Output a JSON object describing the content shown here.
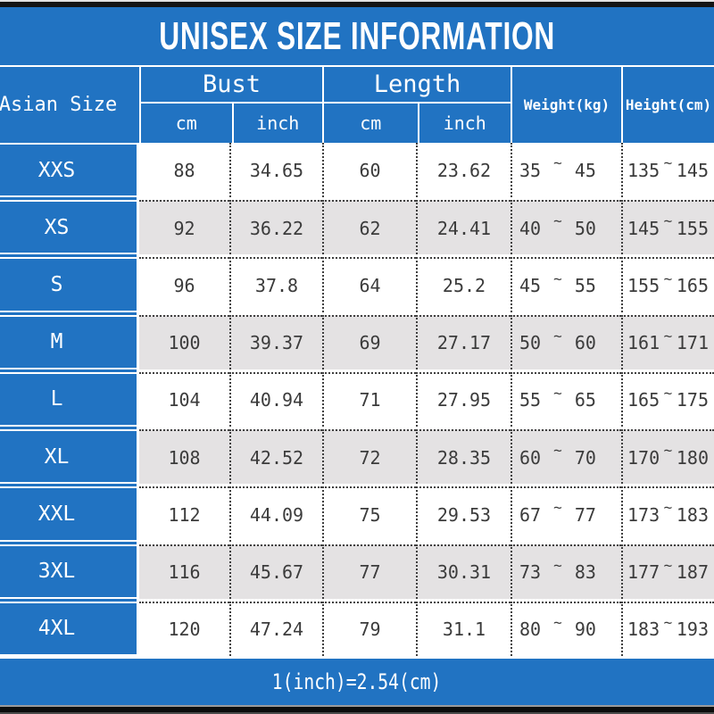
{
  "title": "UNISEX SIZE INFORMATION",
  "tilde": "~",
  "footer_note": "1(inch)=2.54(cm)",
  "colors": {
    "brand_blue": "#2173c2",
    "alt_row_gray": "#e4e2e3",
    "data_text": "#3b3b3b",
    "header_text": "#ffffff",
    "top_bottom_bar": "#141414"
  },
  "header": {
    "size_col": "Asian Size",
    "bust": {
      "label": "Bust",
      "sub_cm": "cm",
      "sub_inch": "inch"
    },
    "length": {
      "label": "Length",
      "sub_cm": "cm",
      "sub_inch": "inch"
    },
    "weight": "Weight(kg)",
    "height": "Height(cm)"
  },
  "chart_data": {
    "type": "table",
    "title": "UNISEX SIZE INFORMATION",
    "columns": [
      "Asian Size",
      "Bust cm",
      "Bust inch",
      "Length cm",
      "Length inch",
      "Weight(kg)",
      "Height(cm)"
    ],
    "rows": [
      {
        "size": "XXS",
        "bust_cm": "88",
        "bust_inch": "34.65",
        "length_cm": "60",
        "length_inch": "23.62",
        "weight_min": "35",
        "weight_max": "45",
        "height_min": "135",
        "height_max": "145"
      },
      {
        "size": "XS",
        "bust_cm": "92",
        "bust_inch": "36.22",
        "length_cm": "62",
        "length_inch": "24.41",
        "weight_min": "40",
        "weight_max": "50",
        "height_min": "145",
        "height_max": "155"
      },
      {
        "size": "S",
        "bust_cm": "96",
        "bust_inch": "37.8",
        "length_cm": "64",
        "length_inch": "25.2",
        "weight_min": "45",
        "weight_max": "55",
        "height_min": "155",
        "height_max": "165"
      },
      {
        "size": "M",
        "bust_cm": "100",
        "bust_inch": "39.37",
        "length_cm": "69",
        "length_inch": "27.17",
        "weight_min": "50",
        "weight_max": "60",
        "height_min": "161",
        "height_max": "171"
      },
      {
        "size": "L",
        "bust_cm": "104",
        "bust_inch": "40.94",
        "length_cm": "71",
        "length_inch": "27.95",
        "weight_min": "55",
        "weight_max": "65",
        "height_min": "165",
        "height_max": "175"
      },
      {
        "size": "XL",
        "bust_cm": "108",
        "bust_inch": "42.52",
        "length_cm": "72",
        "length_inch": "28.35",
        "weight_min": "60",
        "weight_max": "70",
        "height_min": "170",
        "height_max": "180"
      },
      {
        "size": "XXL",
        "bust_cm": "112",
        "bust_inch": "44.09",
        "length_cm": "75",
        "length_inch": "29.53",
        "weight_min": "67",
        "weight_max": "77",
        "height_min": "173",
        "height_max": "183"
      },
      {
        "size": "3XL",
        "bust_cm": "116",
        "bust_inch": "45.67",
        "length_cm": "77",
        "length_inch": "30.31",
        "weight_min": "73",
        "weight_max": "83",
        "height_min": "177",
        "height_max": "187"
      },
      {
        "size": "4XL",
        "bust_cm": "120",
        "bust_inch": "47.24",
        "length_cm": "79",
        "length_inch": "31.1",
        "weight_min": "80",
        "weight_max": "90",
        "height_min": "183",
        "height_max": "193"
      }
    ],
    "note": "1(inch)=2.54(cm)"
  }
}
